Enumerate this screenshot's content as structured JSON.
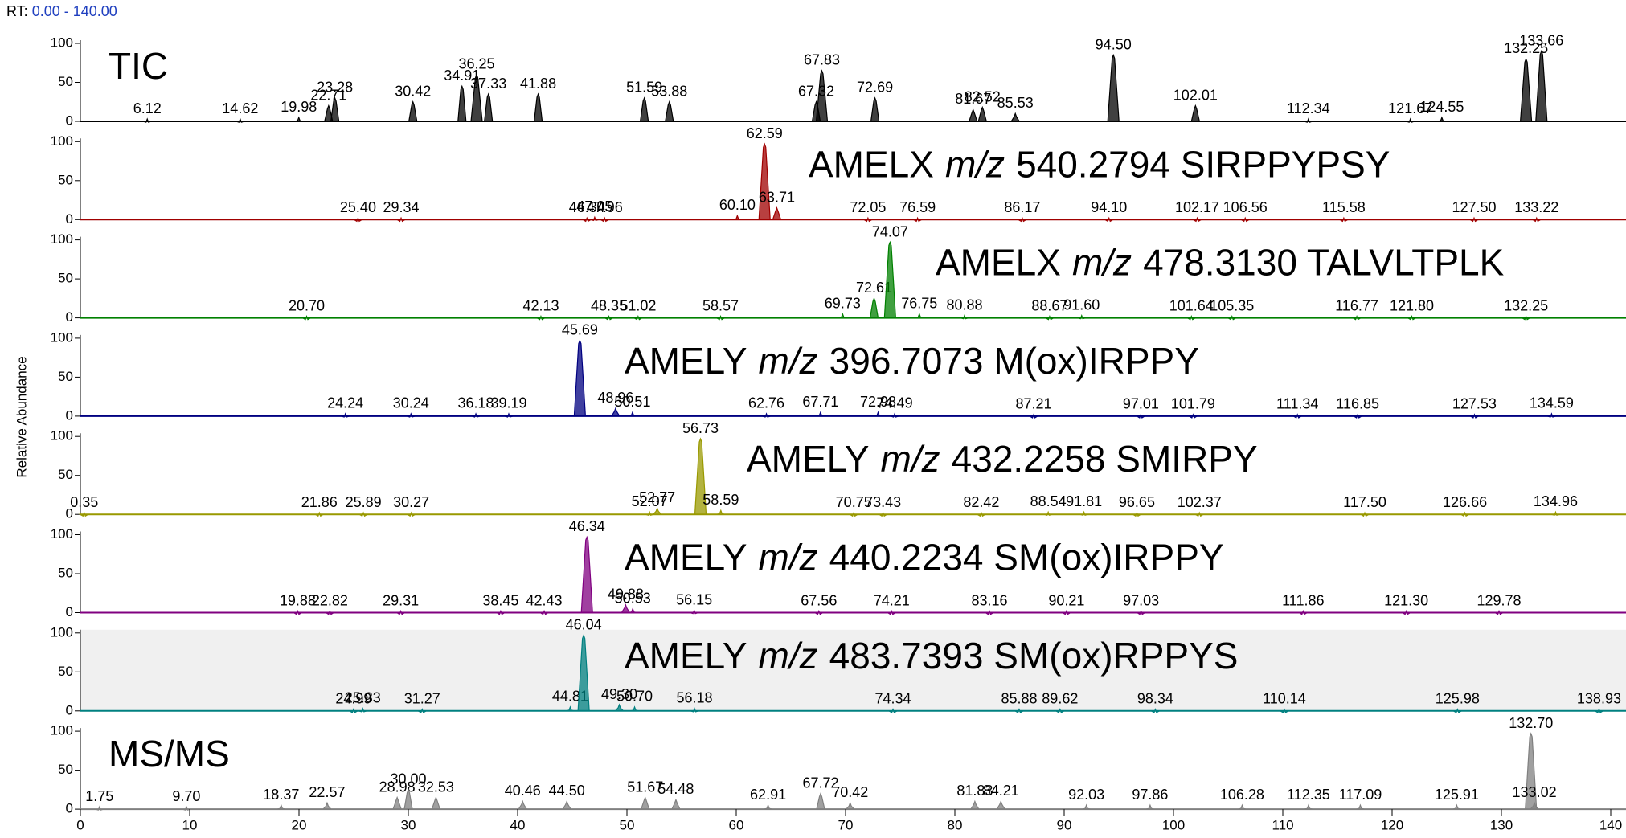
{
  "header": {
    "label": "RT:",
    "range": "0.00 - 140.00"
  },
  "y_axis_label": "Relative Abundance",
  "chart_data": [
    {
      "type": "line",
      "title": [
        "TIC"
      ],
      "color": "#000000",
      "xlim": [
        0,
        140
      ],
      "ylim": [
        0,
        100
      ],
      "yticks": [
        0,
        50,
        100
      ],
      "x": [
        6.12,
        14.62,
        19.98,
        22.71,
        23.28,
        30.42,
        34.91,
        36.25,
        37.33,
        41.88,
        51.59,
        53.88,
        67.32,
        67.83,
        72.69,
        81.67,
        82.52,
        85.53,
        94.5,
        102.01,
        112.34,
        121.67,
        124.55,
        132.25,
        133.66
      ],
      "x_labels": [
        "6.12",
        "14.62",
        "19.98",
        "22.71",
        "23.28",
        "30.42",
        "34.91",
        "36.25",
        "37.33",
        "41.88",
        "51.59",
        "53.88",
        "67.32",
        "67.83",
        "72.69",
        "81.67",
        "82.52",
        "85.53",
        "94.50",
        "102.01",
        "112.34",
        "121.67",
        "124.55",
        "132.25",
        "133.66"
      ],
      "values": [
        3,
        3,
        5,
        20,
        30,
        25,
        45,
        60,
        35,
        35,
        30,
        25,
        25,
        65,
        30,
        15,
        18,
        10,
        85,
        20,
        3,
        3,
        5,
        80,
        90
      ]
    },
    {
      "type": "line",
      "title": [
        "AMELX",
        "m/z",
        "540.2794 SIRPPYPSY"
      ],
      "color": "#a00000",
      "xlim": [
        0,
        140
      ],
      "ylim": [
        0,
        100
      ],
      "yticks": [
        0,
        50,
        100
      ],
      "x": [
        25.4,
        29.34,
        46.34,
        47.05,
        47.96,
        60.1,
        62.59,
        63.71,
        72.05,
        76.59,
        86.17,
        94.1,
        102.17,
        106.56,
        115.58,
        127.5,
        133.22
      ],
      "x_labels": [
        "25.40",
        "29.34",
        "46.34",
        "47.05",
        "47.96",
        "60.10",
        "62.59",
        "63.71",
        "72.05",
        "76.59",
        "86.17",
        "94.10",
        "102.17",
        "106.56",
        "115.58",
        "127.50",
        "133.22"
      ],
      "values": [
        2,
        2,
        2,
        3,
        2,
        5,
        97,
        15,
        2,
        2,
        2,
        2,
        2,
        2,
        2,
        2,
        2
      ]
    },
    {
      "type": "line",
      "title": [
        "AMELX",
        "m/z",
        "478.3130 TALVLTPLK"
      ],
      "color": "#008000",
      "xlim": [
        0,
        140
      ],
      "ylim": [
        0,
        100
      ],
      "yticks": [
        0,
        50,
        100
      ],
      "x": [
        20.7,
        42.13,
        48.35,
        51.02,
        58.57,
        69.73,
        72.61,
        74.07,
        76.75,
        80.88,
        88.67,
        91.6,
        101.64,
        105.35,
        116.77,
        121.8,
        132.25
      ],
      "x_labels": [
        "20.70",
        "42.13",
        "48.35",
        "51.02",
        "58.57",
        "69.73",
        "72.61",
        "74.07",
        "76.75",
        "80.88",
        "88.67",
        "91.60",
        "101.64",
        "105.35",
        "116.77",
        "121.80",
        "132.25"
      ],
      "values": [
        2,
        2,
        2,
        2,
        2,
        5,
        25,
        97,
        5,
        3,
        2,
        3,
        2,
        2,
        2,
        2,
        2
      ]
    },
    {
      "type": "line",
      "title": [
        "AMELY",
        "m/z",
        "396.7073 M(ox)IRPPY"
      ],
      "color": "#000080",
      "xlim": [
        0,
        140
      ],
      "ylim": [
        0,
        100
      ],
      "yticks": [
        0,
        50,
        100
      ],
      "x": [
        24.24,
        30.24,
        36.18,
        39.19,
        45.69,
        48.96,
        50.51,
        62.76,
        67.71,
        72.98,
        74.49,
        87.21,
        97.01,
        101.79,
        111.34,
        116.85,
        127.53,
        134.59
      ],
      "x_labels": [
        "24.24",
        "30.24",
        "36.18",
        "39.19",
        "45.69",
        "48.96",
        "50.51",
        "62.76",
        "67.71",
        "72.98",
        "74.49",
        "87.21",
        "97.01",
        "101.79",
        "111.34",
        "116.85",
        "127.53",
        "134.59"
      ],
      "values": [
        3,
        3,
        3,
        3,
        97,
        10,
        5,
        3,
        5,
        5,
        3,
        2,
        2,
        2,
        2,
        2,
        2,
        3
      ]
    },
    {
      "type": "line",
      "title": [
        "AMELY",
        "m/z",
        "432.2258 SMIRPY"
      ],
      "color": "#999900",
      "xlim": [
        0,
        140
      ],
      "ylim": [
        0,
        100
      ],
      "yticks": [
        0,
        50,
        100
      ],
      "x": [
        0.35,
        21.86,
        25.89,
        30.27,
        52.07,
        52.77,
        56.73,
        58.59,
        70.75,
        73.43,
        82.42,
        88.54,
        91.81,
        96.65,
        102.37,
        117.5,
        126.66,
        134.96
      ],
      "x_labels": [
        "0.35",
        "21.86",
        "25.89",
        "30.27",
        "52.07",
        "52.77",
        "56.73",
        "58.59",
        "70.75",
        "73.43",
        "82.42",
        "88.54",
        "91.81",
        "96.65",
        "102.37",
        "117.50",
        "126.66",
        "134.96"
      ],
      "values": [
        2,
        2,
        2,
        2,
        3,
        8,
        97,
        5,
        2,
        2,
        2,
        3,
        3,
        2,
        2,
        2,
        2,
        3
      ]
    },
    {
      "type": "line",
      "title": [
        "AMELY",
        "m/z",
        "440.2234 SM(ox)IRPPY"
      ],
      "color": "#800080",
      "xlim": [
        0,
        140
      ],
      "ylim": [
        0,
        100
      ],
      "yticks": [
        0,
        50,
        100
      ],
      "x": [
        19.88,
        22.82,
        29.31,
        38.45,
        42.43,
        46.34,
        49.88,
        50.53,
        56.15,
        67.56,
        74.21,
        83.16,
        90.21,
        97.03,
        111.86,
        121.3,
        129.78
      ],
      "x_labels": [
        "19.88",
        "22.82",
        "29.31",
        "38.45",
        "42.43",
        "46.34",
        "49.88",
        "50.53",
        "56.15",
        "67.56",
        "74.21",
        "83.16",
        "90.21",
        "97.03",
        "111.86",
        "121.30",
        "129.78"
      ],
      "values": [
        2,
        2,
        2,
        2,
        2,
        97,
        10,
        5,
        3,
        2,
        2,
        2,
        2,
        2,
        2,
        2,
        2
      ]
    },
    {
      "type": "line",
      "title": [
        "AMELY",
        "m/z",
        "483.7393 SM(ox)RPPYS"
      ],
      "color": "#008080",
      "highlight": true,
      "xlim": [
        0,
        140
      ],
      "ylim": [
        0,
        100
      ],
      "yticks": [
        0,
        50,
        100
      ],
      "x": [
        24.99,
        25.83,
        31.27,
        44.81,
        46.04,
        49.3,
        50.7,
        56.18,
        74.34,
        85.88,
        89.62,
        98.34,
        110.14,
        125.98,
        138.93
      ],
      "x_labels": [
        "24.99",
        "25.83",
        "31.27",
        "44.81",
        "46.04",
        "49.30",
        "50.70",
        "56.18",
        "74.34",
        "85.88",
        "89.62",
        "98.34",
        "110.14",
        "125.98",
        "138.93"
      ],
      "values": [
        2,
        3,
        2,
        5,
        97,
        8,
        5,
        3,
        2,
        2,
        2,
        2,
        2,
        2,
        2
      ]
    },
    {
      "type": "line",
      "title": [
        "MS/MS"
      ],
      "color": "#808080",
      "xlim": [
        0,
        140
      ],
      "ylim": [
        0,
        100
      ],
      "yticks": [
        0,
        50,
        100
      ],
      "xticks": [
        0,
        10,
        20,
        30,
        40,
        50,
        60,
        70,
        80,
        90,
        100,
        110,
        120,
        130,
        140
      ],
      "x": [
        1.75,
        9.7,
        18.37,
        22.57,
        28.98,
        30.0,
        32.53,
        40.46,
        44.5,
        51.67,
        54.48,
        62.91,
        67.72,
        70.42,
        81.83,
        84.21,
        92.03,
        97.86,
        106.28,
        112.35,
        117.09,
        125.91,
        132.7,
        133.02
      ],
      "x_labels": [
        "1.75",
        "9.70",
        "18.37",
        "22.57",
        "28.98",
        "30.00",
        "32.53",
        "40.46",
        "44.50",
        "51.67",
        "54.48",
        "62.91",
        "67.72",
        "70.42",
        "81.83",
        "84.21",
        "92.03",
        "97.86",
        "106.28",
        "112.35",
        "117.09",
        "125.91",
        "132.70",
        "133.02"
      ],
      "values": [
        3,
        3,
        5,
        8,
        15,
        25,
        15,
        10,
        10,
        15,
        12,
        5,
        20,
        8,
        10,
        10,
        5,
        5,
        5,
        5,
        5,
        5,
        97,
        8
      ]
    }
  ]
}
